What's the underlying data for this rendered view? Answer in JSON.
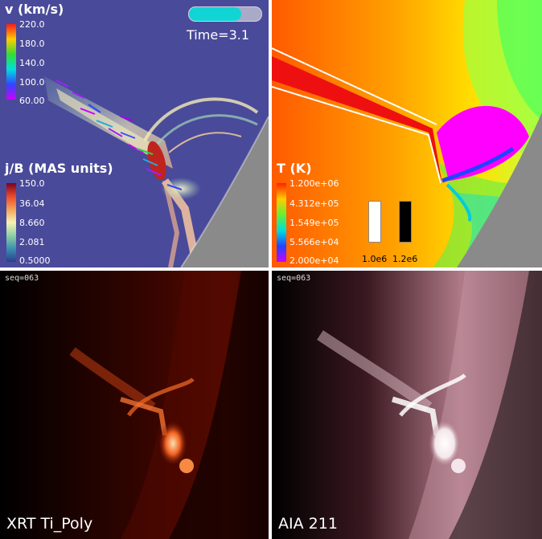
{
  "panel_velocity": {
    "title": "v (km/s)",
    "ticks": [
      "220.0",
      "180.0",
      "140.0",
      "100.0",
      "60.00"
    ],
    "colors": [
      "#ff1a1a",
      "#ffcc00",
      "#33dd33",
      "#00dddd",
      "#3344ff",
      "#cc00ff"
    ],
    "time_label": "Time=3.1",
    "progress": 0.72
  },
  "panel_current": {
    "title": "j/B (MAS units)",
    "ticks": [
      "150.0",
      "36.04",
      "8.660",
      "2.081",
      "0.5000"
    ],
    "colors": [
      "#7a0022",
      "#e84a2a",
      "#f4a25a",
      "#f6f2b4",
      "#8fcfa4",
      "#3b8fb0",
      "#2a3f8f"
    ]
  },
  "panel_temperature": {
    "title": "T (K)",
    "ticks": [
      "1.200e+06",
      "4.312e+05",
      "1.549e+05",
      "5.566e+04",
      "2.000e+04"
    ],
    "colors": [
      "#ff2000",
      "#ffcc00",
      "#66ee33",
      "#00dddd",
      "#2244ff",
      "#cc00ff"
    ],
    "swatches": [
      {
        "label": "1.0e6",
        "color": "#ffffff"
      },
      {
        "label": "1.2e6",
        "color": "#000000"
      }
    ]
  },
  "panel_xrt": {
    "seq": "seq=063",
    "label": "XRT Ti_Poly"
  },
  "panel_aia": {
    "seq": "seq=063",
    "label": "AIA 211"
  }
}
